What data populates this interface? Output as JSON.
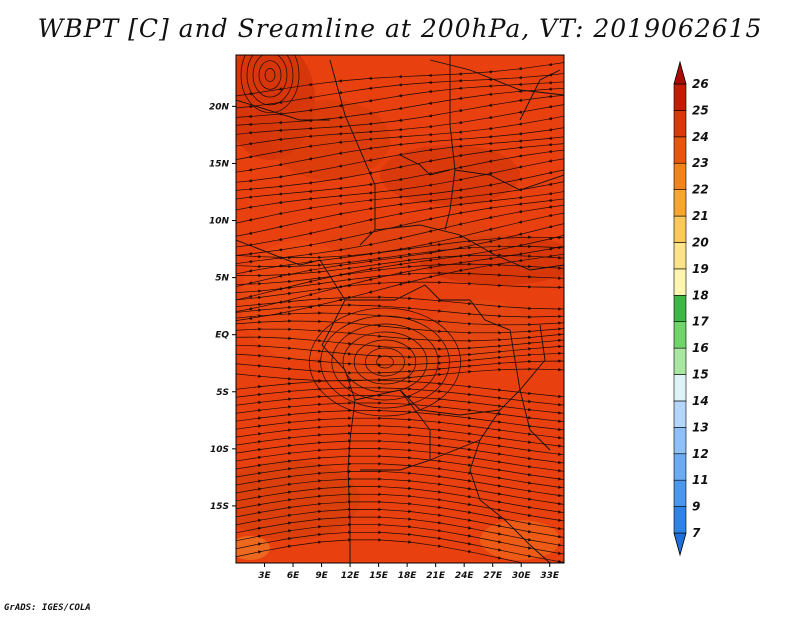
{
  "title": "WBPT [C] and Sreamline at 200hPa, VT: 2019062615",
  "credit": "GrADS: IGES/COLA",
  "map": {
    "lon_range": [
      0,
      34.5
    ],
    "lat_range": [
      -20,
      24.5
    ],
    "lon_ticks": [
      {
        "v": 3,
        "label": "3E"
      },
      {
        "v": 6,
        "label": "6E"
      },
      {
        "v": 9,
        "label": "9E"
      },
      {
        "v": 12,
        "label": "12E"
      },
      {
        "v": 15,
        "label": "15E"
      },
      {
        "v": 18,
        "label": "18E"
      },
      {
        "v": 21,
        "label": "21E"
      },
      {
        "v": 24,
        "label": "24E"
      },
      {
        "v": 27,
        "label": "27E"
      },
      {
        "v": 30,
        "label": "30E"
      },
      {
        "v": 33,
        "label": "33E"
      }
    ],
    "lat_ticks": [
      {
        "v": 20,
        "label": "20N"
      },
      {
        "v": 15,
        "label": "15N"
      },
      {
        "v": 10,
        "label": "10N"
      },
      {
        "v": 5,
        "label": "5N"
      },
      {
        "v": 0,
        "label": "EQ"
      },
      {
        "v": -5,
        "label": "5S"
      },
      {
        "v": -10,
        "label": "10S"
      },
      {
        "v": -15,
        "label": "15S"
      }
    ],
    "base_color": "#e8400f"
  },
  "colorbar": {
    "labels": [
      "7",
      "9",
      "11",
      "12",
      "13",
      "14",
      "15",
      "16",
      "17",
      "18",
      "19",
      "20",
      "21",
      "22",
      "23",
      "24",
      "25",
      "26"
    ],
    "colors": [
      "#1e6fd9",
      "#2f82e6",
      "#4b97ee",
      "#6aabf3",
      "#8ec0f7",
      "#b3d6fa",
      "#e0f3f8",
      "#a9e6a2",
      "#6fd46a",
      "#3db846",
      "#fff5b0",
      "#fde48a",
      "#fbc95a",
      "#f8a630",
      "#f2841c",
      "#e8560e",
      "#d63a08",
      "#c21c05",
      "#a80c02"
    ]
  }
}
